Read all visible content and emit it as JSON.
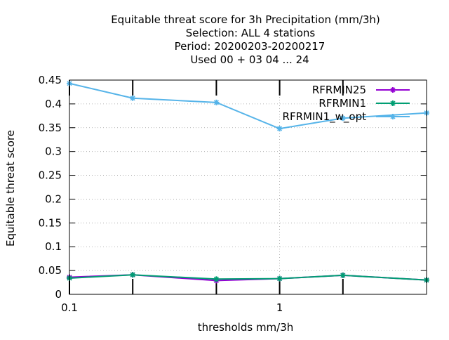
{
  "chart_data": {
    "type": "line",
    "title_lines": [
      "Equitable threat score  for 3h Precipitation (mm/3h)",
      "Selection: ALL      4 stations",
      "Period: 20200203-20200217",
      "Used  00 + 03 04 ... 24"
    ],
    "xlabel": "thresholds mm/3h",
    "ylabel": "Equitable threat score",
    "x_scale": "log",
    "xlim": [
      0.1,
      5
    ],
    "ylim": [
      0,
      0.45
    ],
    "x_ticks": [
      {
        "value": 0.1,
        "label": "0.1"
      },
      {
        "value": 1,
        "label": "1"
      }
    ],
    "x_minor_ticks": [
      0.2,
      0.5,
      2
    ],
    "y_ticks": [
      {
        "value": 0,
        "label": "0"
      },
      {
        "value": 0.05,
        "label": "0.05"
      },
      {
        "value": 0.1,
        "label": "0.1"
      },
      {
        "value": 0.15,
        "label": "0.15"
      },
      {
        "value": 0.2,
        "label": "0.2"
      },
      {
        "value": 0.25,
        "label": "0.25"
      },
      {
        "value": 0.3,
        "label": "0.3"
      },
      {
        "value": 0.35,
        "label": "0.35"
      },
      {
        "value": 0.4,
        "label": "0.4"
      },
      {
        "value": 0.45,
        "label": "0.45"
      }
    ],
    "grid": true,
    "legend_position": "top-right",
    "x": [
      0.1,
      0.2,
      0.5,
      1,
      2,
      5
    ],
    "series": [
      {
        "name": "RFRMIN25",
        "color": "#9400d3",
        "values": [
          0.036,
          0.041,
          0.029,
          0.033,
          0.04,
          0.03
        ]
      },
      {
        "name": "RFRMIN1",
        "color": "#009e73",
        "values": [
          0.034,
          0.041,
          0.032,
          0.033,
          0.04,
          0.03
        ]
      },
      {
        "name": "RFRMIN1_w_opt",
        "color": "#56b4e9",
        "values": [
          0.443,
          0.412,
          0.403,
          0.348,
          0.37,
          0.381
        ]
      }
    ]
  }
}
